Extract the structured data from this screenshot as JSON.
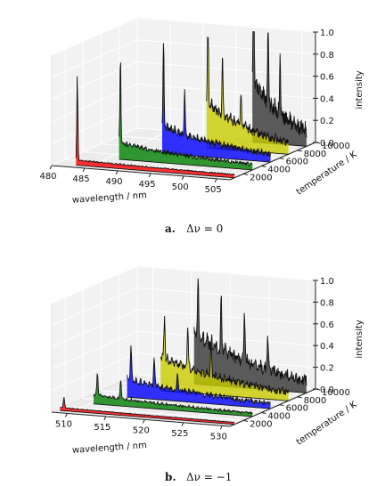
{
  "chart_data": [
    {
      "type": "area",
      "caption_label": "a.",
      "caption_text": "Δν = 0",
      "xlabel": "wavelength / nm",
      "ylabel": "temperature / K",
      "zlabel": "intensity",
      "xlim": [
        480,
        507
      ],
      "ylim": [
        500,
        10000
      ],
      "zlim": [
        0,
        1.0
      ],
      "xticks": [
        "480",
        "485",
        "490",
        "495",
        "500",
        "505"
      ],
      "yticks": [
        "2000",
        "4000",
        "6000",
        "8000",
        "10000"
      ],
      "zticks": [
        "0.0",
        "0.2",
        "0.4",
        "0.6",
        "0.8",
        "1.0"
      ],
      "grid": true,
      "series": [
        {
          "temperature": 1000,
          "color": "#ff0000",
          "start": 483.0,
          "end": 507.0,
          "peaks": [
            [
              483.2,
              0.78
            ]
          ],
          "decay": 0.45,
          "level": 0.02,
          "noise": 0.01
        },
        {
          "temperature": 3000,
          "color": "#008000",
          "start": 486.8,
          "end": 507.0,
          "peaks": [
            [
              487.0,
              0.8
            ]
          ],
          "decay": 0.35,
          "level": 0.12,
          "noise": 0.03
        },
        {
          "temperature": 5000,
          "color": "#0000ff",
          "start": 490.6,
          "end": 507.0,
          "peaks": [
            [
              490.8,
              0.8
            ],
            [
              494.0,
              0.42
            ]
          ],
          "decay": 0.25,
          "level": 0.22,
          "noise": 0.05
        },
        {
          "temperature": 7000,
          "color": "#cccc00",
          "start": 494.6,
          "end": 507.0,
          "peaks": [
            [
              494.8,
              0.8
            ],
            [
              497.0,
              0.5
            ],
            [
              499.8,
              0.32
            ]
          ],
          "decay": 0.15,
          "level": 0.38,
          "noise": 0.07
        },
        {
          "temperature": 9000,
          "color": "#333333",
          "start": 498.8,
          "end": 507.0,
          "peaks": [
            [
              499.0,
              1.0
            ],
            [
              501.2,
              0.7
            ],
            [
              503.0,
              0.55
            ]
          ],
          "decay": 0.1,
          "level": 0.52,
          "noise": 0.12
        }
      ]
    },
    {
      "type": "area",
      "caption_label": "b.",
      "caption_text": "Δν = −1",
      "xlabel": "wavelength / nm",
      "ylabel": "temperature / K",
      "zlabel": "intensity",
      "xlim": [
        508,
        531
      ],
      "ylim": [
        500,
        10000
      ],
      "zlim": [
        0,
        1.0
      ],
      "xticks": [
        "510",
        "515",
        "520",
        "525",
        "530"
      ],
      "yticks": [
        "2000",
        "4000",
        "6000",
        "8000",
        "10000"
      ],
      "zticks": [
        "0.0",
        "0.2",
        "0.4",
        "0.6",
        "0.8",
        "1.0"
      ],
      "grid": true,
      "series": [
        {
          "temperature": 1000,
          "color": "#ff0000",
          "start": 508.5,
          "end": 531.0,
          "peaks": [
            [
              509.0,
              0.1
            ]
          ],
          "decay": 0.3,
          "level": 0.01,
          "noise": 0.005
        },
        {
          "temperature": 3000,
          "color": "#008000",
          "start": 510.5,
          "end": 531.0,
          "peaks": [
            [
              511.0,
              0.22
            ],
            [
              514.0,
              0.18
            ]
          ],
          "decay": 0.25,
          "level": 0.06,
          "noise": 0.02
        },
        {
          "temperature": 5000,
          "color": "#0000ff",
          "start": 512.5,
          "end": 531.0,
          "peaks": [
            [
              513.0,
              0.3
            ],
            [
              516.0,
              0.26
            ],
            [
              519.0,
              0.18
            ]
          ],
          "decay": 0.18,
          "level": 0.14,
          "noise": 0.04
        },
        {
          "temperature": 7000,
          "color": "#cccc00",
          "start": 514.5,
          "end": 531.0,
          "peaks": [
            [
              515.0,
              0.38
            ],
            [
              518.0,
              0.36
            ],
            [
              521.0,
              0.3
            ]
          ],
          "decay": 0.12,
          "level": 0.28,
          "noise": 0.06
        },
        {
          "temperature": 9000,
          "color": "#333333",
          "start": 516.5,
          "end": 531.0,
          "peaks": [
            [
              517.0,
              0.5
            ],
            [
              520.0,
              0.52
            ],
            [
              523.0,
              0.45
            ],
            [
              526.0,
              0.32
            ]
          ],
          "decay": 0.08,
          "level": 0.42,
          "noise": 0.1
        }
      ]
    }
  ]
}
